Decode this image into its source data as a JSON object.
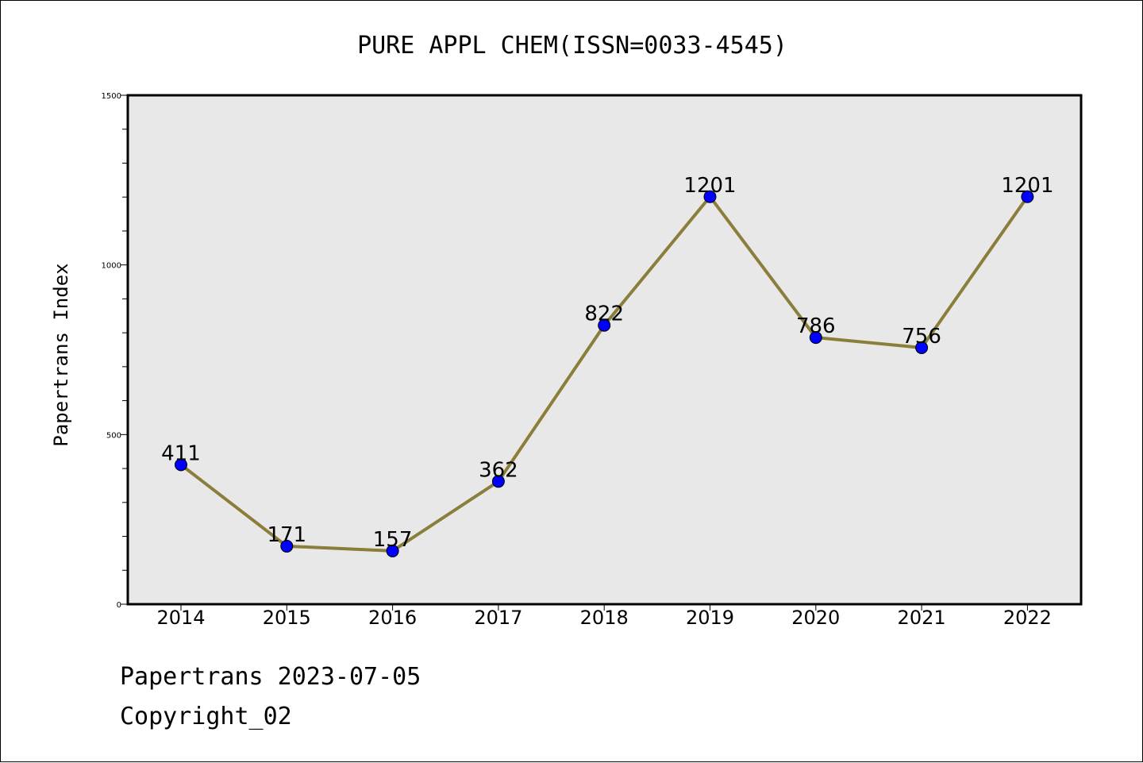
{
  "chart_data": {
    "type": "line",
    "title": "PURE APPL CHEM(ISSN=0033-4545)",
    "xlabel": "",
    "ylabel": "Papertrans Index",
    "categories": [
      "2014",
      "2015",
      "2016",
      "2017",
      "2018",
      "2019",
      "2020",
      "2021",
      "2022"
    ],
    "series": [
      {
        "values": [
          411,
          171,
          157,
          362,
          822,
          1201,
          786,
          756,
          1201
        ]
      }
    ],
    "data_labels": [
      "411",
      "171",
      "157",
      "362",
      "822",
      "1201",
      "786",
      "756",
      "1201"
    ],
    "ylim": [
      0,
      1500
    ],
    "yticks": [
      0,
      500,
      1000,
      1500
    ],
    "grid": false,
    "legend": "none",
    "colors": {
      "line": "#8b7d3a",
      "marker": "#0000ff",
      "plot_background": "#e8e8e8"
    }
  },
  "footer": {
    "line1": "Papertrans 2023-07-05",
    "line2": "Copyright_02"
  }
}
